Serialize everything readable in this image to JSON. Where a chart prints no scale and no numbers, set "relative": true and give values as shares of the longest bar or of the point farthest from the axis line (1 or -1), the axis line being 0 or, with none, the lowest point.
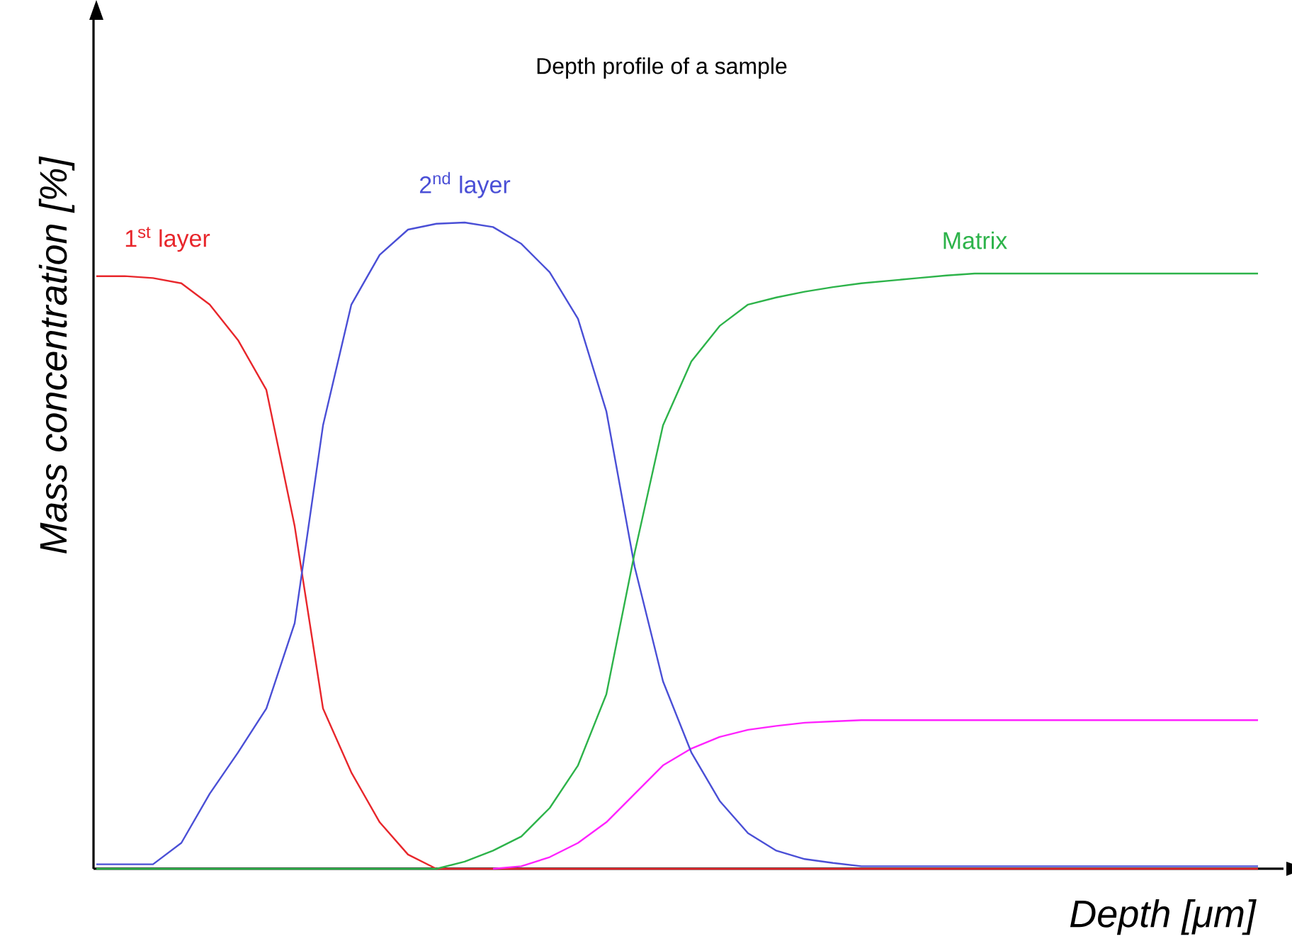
{
  "chart_data": {
    "type": "line",
    "title": "Depth profile of a sample",
    "xlabel": "Depth [μm]",
    "ylabel": "Mass concentration [%]",
    "relative": true,
    "categories": [
      null,
      null,
      null,
      null,
      null,
      null,
      null,
      null,
      null,
      null,
      null,
      null,
      null,
      null,
      null,
      null,
      null,
      null,
      null,
      null,
      null,
      null,
      null,
      null,
      null,
      null,
      null,
      null,
      null,
      null,
      null,
      null,
      null,
      null,
      null,
      null,
      null,
      null,
      null,
      null,
      null,
      null
    ],
    "series": [
      {
        "name": "1$^{st}$ layer",
        "color": "#e8262b",
        "values": [
          0.917,
          0.917,
          0.914,
          0.906,
          0.873,
          0.818,
          0.741,
          0.53,
          0.248,
          0.149,
          0.072,
          0.022,
          0,
          0,
          0,
          0,
          0,
          0,
          0,
          0,
          0,
          0,
          0,
          0,
          0,
          0,
          0,
          0,
          0,
          0,
          0,
          0,
          0,
          0,
          0,
          0,
          0,
          0,
          0,
          0,
          0,
          0
        ]
      },
      {
        "color": "#ff22ff",
        "values": [
          null,
          null,
          null,
          null,
          null,
          null,
          null,
          null,
          null,
          null,
          null,
          null,
          null,
          null,
          0,
          0.004,
          0.018,
          0.04,
          0.072,
          0.116,
          0.16,
          0.186,
          0.204,
          0.215,
          0.221,
          0.226,
          0.228,
          0.23,
          0.23,
          0.23,
          0.23,
          0.23,
          0.23,
          0.23,
          0.23,
          0.23,
          0.23,
          0.23,
          0.23,
          0.23,
          0.23,
          0.23
        ]
      },
      {
        "name": "2$^{nd}$ layer",
        "color": "#4a4fd6",
        "values": [
          0.007,
          0.007,
          0.007,
          0.04,
          0.116,
          0.18,
          0.248,
          0.38,
          0.686,
          0.873,
          0.95,
          0.989,
          0.998,
          1,
          0.993,
          0.967,
          0.923,
          0.851,
          0.708,
          0.467,
          0.29,
          0.18,
          0.105,
          0.055,
          0.028,
          0.015,
          0.009,
          0.004,
          0.004,
          0.004,
          0.004,
          0.004,
          0.004,
          0.004,
          0.004,
          0.004,
          0.004,
          0.004,
          0.004,
          0.004,
          0.004,
          0.004
        ]
      },
      {
        "name": "Matrix",
        "color": "#2db34a",
        "values": [
          0,
          0,
          0,
          0,
          0,
          0,
          0,
          0,
          0,
          0,
          0,
          0,
          0,
          0.011,
          0.028,
          0.05,
          0.094,
          0.16,
          0.27,
          0.489,
          0.686,
          0.785,
          0.84,
          0.873,
          0.884,
          0.893,
          0.9,
          0.906,
          0.91,
          0.914,
          0.918,
          0.921,
          0.921,
          0.921,
          0.921,
          0.921,
          0.921,
          0.921,
          0.921,
          0.921,
          0.921,
          0.921
        ]
      }
    ]
  }
}
